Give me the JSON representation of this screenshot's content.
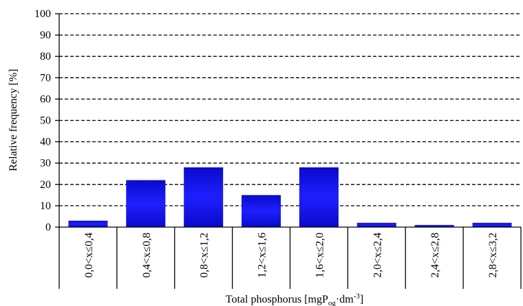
{
  "chart_data": {
    "type": "bar",
    "categories": [
      "0,0<x≤0,4",
      "0,4<x≤0,8",
      "0,8<x≤1,2",
      "1,2<x≤1,6",
      "1,6<x≤2,0",
      "2,0<x≤2,4",
      "2,4<x≤2,8",
      "2,8<x≤3,2"
    ],
    "values": [
      3,
      22,
      28,
      15,
      28,
      2,
      1,
      2
    ],
    "ylabel": "Relative frequency [%]",
    "xlabel": {
      "base": "Total phosphorus [mgP",
      "subscript": "og",
      "middle": "·dm",
      "superscript": "-3",
      "end": "]"
    },
    "ylim": [
      0,
      100
    ],
    "yticks": [
      0,
      10,
      20,
      30,
      40,
      50,
      60,
      70,
      80,
      90,
      100
    ],
    "grid": true,
    "bar_color": "#1a1aff",
    "bar_color_dark": "#0a0ad0"
  }
}
